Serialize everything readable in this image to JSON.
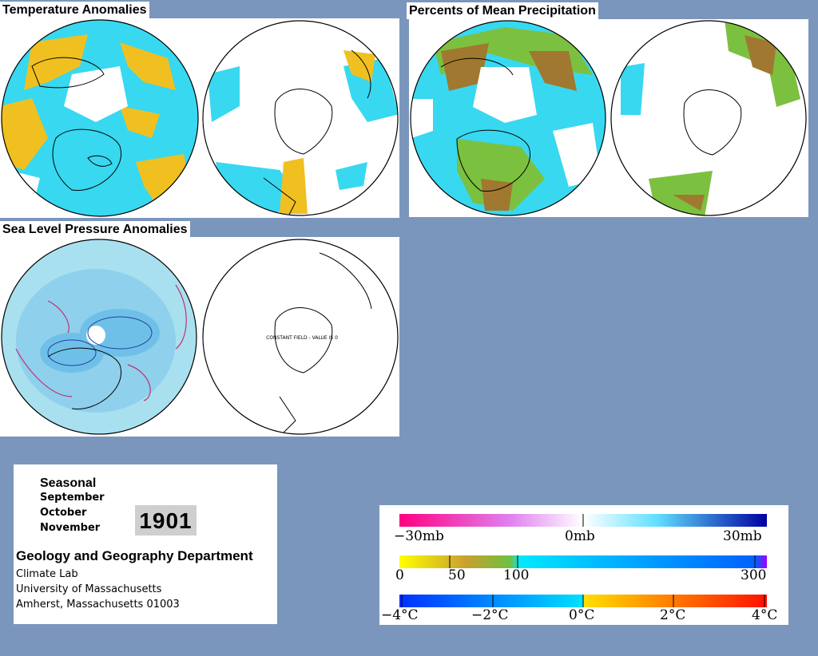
{
  "titles": {
    "temperature": "Temperature Anomalies",
    "precipitation": "Percents of Mean Precipitation",
    "pressure": "Sea Level Pressure Anomalies"
  },
  "map_annotation": "CONSTANT FIELD - VALUE IS 0",
  "info": {
    "season": "Seasonal",
    "months": [
      "September",
      "October",
      "November"
    ],
    "year": "1901",
    "department": "Geology and Geography Department",
    "lines": [
      "Climate Lab",
      "University of Massachusetts",
      "Amherst, Massachusetts 01003"
    ]
  },
  "legend": {
    "pressure": {
      "labels": [
        "−30mb",
        "0mb",
        "30mb"
      ],
      "colors": [
        "#ff0080",
        "#ff40c0",
        "#e080f0",
        "#ffffff",
        "#60e0ff",
        "#4060ff",
        "#0000c0"
      ]
    },
    "precip": {
      "labels": [
        "0",
        "50",
        "100",
        "300"
      ],
      "colors": [
        "#ffff00",
        "#c89030",
        "#80c040",
        "#00e0ff",
        "#0090ff",
        "#a000ff"
      ]
    },
    "temp": {
      "labels": [
        "−4°C",
        "−2°C",
        "0°C",
        "2°C",
        "4°C"
      ],
      "colors": [
        "#0040ff",
        "#00c0ff",
        "#ffe000",
        "#ff8000",
        "#ff0000"
      ]
    }
  },
  "colors": {
    "background": "#7b96bd",
    "temp_cold": "#38d8f0",
    "temp_warm": "#f0c020",
    "precip_green": "#7cc040",
    "precip_brown": "#a07830",
    "slp_fill": "#a8e0f0",
    "slp_low": "#6fc0e8"
  }
}
